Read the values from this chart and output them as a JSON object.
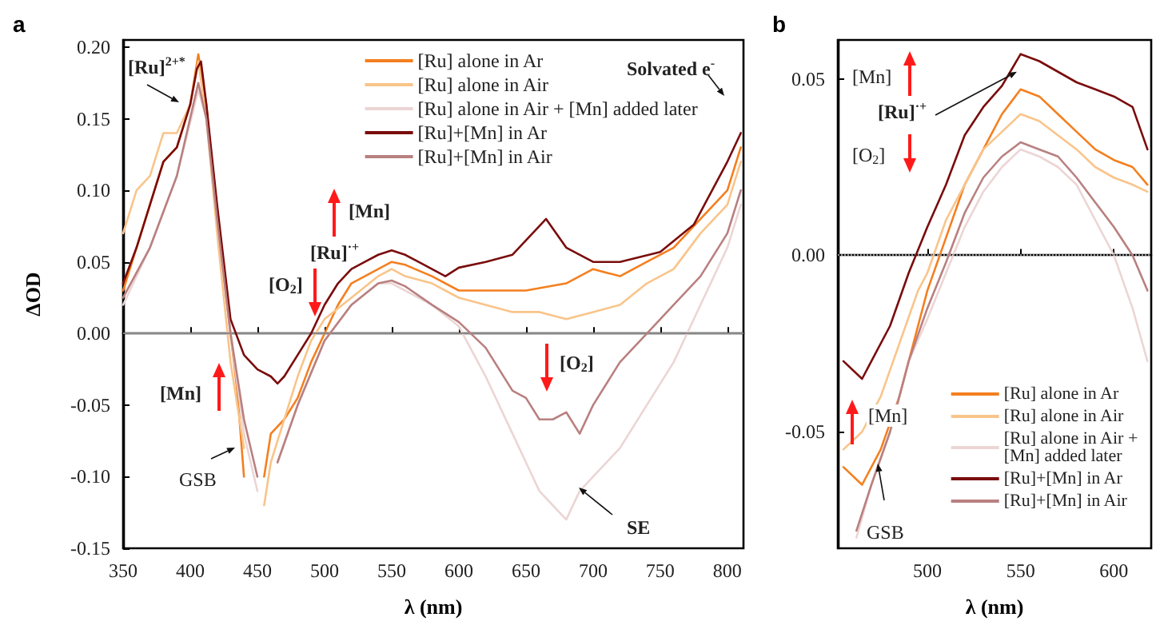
{
  "chart_data": [
    {
      "type": "line",
      "title": "a",
      "xlabel": "λ (nm)",
      "ylabel": "ΔOD",
      "xlim": [
        350,
        812
      ],
      "ylim": [
        -0.15,
        0.205
      ],
      "xticks": [
        350,
        400,
        450,
        500,
        550,
        600,
        650,
        700,
        750,
        800
      ],
      "yticks": [
        -0.15,
        {
          "value": -0.1,
          "label": "-0.10"
        },
        -0.05,
        {
          "value": 0,
          "label": "0.00"
        },
        0.05,
        {
          "value": 0.1,
          "label": "0.10"
        },
        0.15,
        {
          "value": 0.2,
          "label": "0.20"
        }
      ],
      "marker": "none",
      "legend": "top right",
      "ref_lines": [
        {
          "axis": "y",
          "value": 0,
          "color": "#888888"
        }
      ],
      "annotations": [
        "[Ru]$^{2+*}$",
        "Solvated e$^{-}$",
        "[Mn]",
        "[Ru]$^{·+}$",
        "[O$_{2}$]",
        "[Mn]",
        "[O$_{2}$]",
        "GSB",
        "SE"
      ],
      "series": [
        {
          "name": "[Ru] alone in Ar",
          "color": "#f47f1f",
          "x": [
            350,
            360,
            370,
            380,
            390,
            400,
            406,
            412,
            420,
            430,
            435,
            440,
            444,
            447,
            449,
            451,
            453,
            455,
            460,
            470,
            480,
            490,
            500,
            510,
            520,
            540,
            550,
            560,
            580,
            600,
            620,
            650,
            680,
            700,
            720,
            740,
            760,
            780,
            800,
            810
          ],
          "values": [
            0.03,
            0.06,
            0.09,
            0.12,
            0.13,
            0.16,
            0.195,
            0.16,
            0.08,
            0.0,
            -0.04,
            -0.1,
            null,
            null,
            null,
            null,
            null,
            -0.1,
            -0.07,
            -0.06,
            -0.045,
            -0.02,
            0.0,
            0.02,
            0.035,
            0.045,
            0.05,
            0.048,
            0.04,
            0.03,
            0.03,
            0.03,
            0.035,
            0.045,
            0.04,
            0.05,
            0.06,
            0.08,
            0.1,
            0.13
          ]
        },
        {
          "name": "[Ru] alone in Air",
          "color": "#f9c48a",
          "x": [
            350,
            360,
            370,
            380,
            390,
            400,
            406,
            412,
            420,
            430,
            440,
            448,
            455,
            460,
            470,
            480,
            490,
            500,
            520,
            540,
            550,
            560,
            580,
            600,
            620,
            640,
            660,
            680,
            700,
            720,
            740,
            760,
            780,
            800,
            810
          ],
          "values": [
            0.07,
            0.1,
            0.11,
            0.14,
            0.14,
            0.16,
            0.19,
            0.15,
            0.07,
            -0.02,
            -0.08,
            null,
            -0.12,
            -0.09,
            -0.06,
            -0.03,
            -0.005,
            0.01,
            0.025,
            0.04,
            0.045,
            0.04,
            0.035,
            0.025,
            0.02,
            0.015,
            0.015,
            0.01,
            0.015,
            0.02,
            0.035,
            0.045,
            0.07,
            0.09,
            0.12
          ]
        },
        {
          "name": "[Ru] alone in Air + [Mn] added later",
          "color": "#ecd5d5",
          "x": [
            350,
            370,
            390,
            406,
            412,
            420,
            430,
            440,
            450,
            458,
            465,
            480,
            500,
            520,
            540,
            550,
            560,
            580,
            600,
            620,
            640,
            650,
            660,
            670,
            680,
            690,
            700,
            720,
            740,
            760,
            780,
            800,
            810
          ],
          "values": [
            0.02,
            0.06,
            0.11,
            0.17,
            0.15,
            0.08,
            0.0,
            -0.07,
            -0.11,
            null,
            -0.09,
            -0.05,
            -0.005,
            0.02,
            0.035,
            0.035,
            0.03,
            0.02,
            0.005,
            -0.03,
            -0.07,
            -0.09,
            -0.11,
            -0.12,
            -0.13,
            -0.11,
            -0.1,
            -0.08,
            -0.05,
            -0.02,
            0.02,
            0.06,
            0.09
          ]
        },
        {
          "name": "[Ru]+[Mn] in Ar",
          "color": "#7a0c0c",
          "x": [
            350,
            360,
            370,
            380,
            390,
            400,
            405,
            408,
            412,
            420,
            425,
            430,
            440,
            450,
            460,
            465,
            470,
            480,
            490,
            500,
            510,
            520,
            530,
            540,
            550,
            560,
            570,
            580,
            590,
            600,
            620,
            640,
            665,
            680,
            700,
            720,
            750,
            775,
            800,
            810
          ],
          "values": [
            0.035,
            0.06,
            0.09,
            0.12,
            0.13,
            0.16,
            0.185,
            0.19,
            0.16,
            0.09,
            0.05,
            0.01,
            -0.015,
            -0.025,
            -0.03,
            -0.035,
            -0.03,
            -0.015,
            0.0,
            0.02,
            0.035,
            0.045,
            0.05,
            0.055,
            0.058,
            0.055,
            0.05,
            0.045,
            0.04,
            0.046,
            0.05,
            0.055,
            0.08,
            0.06,
            0.05,
            0.05,
            0.057,
            0.076,
            0.12,
            0.14
          ]
        },
        {
          "name": "[Ru]+[Mn] in Air",
          "color": "#b98080",
          "x": [
            350,
            370,
            390,
            406,
            412,
            420,
            430,
            440,
            450,
            458,
            465,
            480,
            500,
            520,
            540,
            550,
            560,
            580,
            600,
            620,
            640,
            650,
            660,
            670,
            680,
            690,
            700,
            720,
            740,
            760,
            780,
            800,
            810
          ],
          "values": [
            0.025,
            0.06,
            0.11,
            0.175,
            0.15,
            0.08,
            0.0,
            -0.06,
            -0.1,
            null,
            -0.09,
            -0.05,
            -0.005,
            0.02,
            0.035,
            0.037,
            0.033,
            0.02,
            0.008,
            -0.01,
            -0.04,
            -0.045,
            -0.06,
            -0.06,
            -0.055,
            -0.07,
            -0.05,
            -0.02,
            0.0,
            0.02,
            0.04,
            0.07,
            0.1
          ]
        }
      ]
    },
    {
      "type": "line",
      "title": "b",
      "xlabel": "λ (nm)",
      "xlim": [
        452,
        620
      ],
      "ylim": [
        -0.083,
        0.061
      ],
      "xticks": [
        500,
        550,
        600
      ],
      "yticks": [
        -0.05,
        {
          "value": 0,
          "label": "0.00"
        },
        0.05
      ],
      "marker": "none",
      "legend": "bottom right",
      "ref_lines": [
        {
          "axis": "y",
          "value": 0,
          "color": "#888888",
          "line_style": "dotted"
        }
      ],
      "annotations": [
        "[Mn]",
        {
          "text": "[Ru]$^{·+}$",
          "x": 548,
          "y": 0.052
        },
        "[O$_{2}$]",
        "[Mn]",
        "GSB"
      ],
      "series": [
        {
          "name": "[Ru] alone in Ar",
          "color": "#f47f1f",
          "x": [
            455,
            465,
            475,
            485,
            495,
            500,
            510,
            520,
            530,
            540,
            550,
            560,
            570,
            580,
            590,
            600,
            610,
            618
          ],
          "values": [
            -0.06,
            -0.065,
            -0.055,
            -0.04,
            -0.02,
            -0.01,
            0.005,
            0.02,
            0.03,
            0.04,
            0.047,
            0.045,
            0.04,
            0.035,
            0.03,
            0.027,
            0.025,
            0.02
          ]
        },
        {
          "name": "[Ru] alone in Air",
          "color": "#f9c48a",
          "x": [
            455,
            465,
            475,
            485,
            495,
            500,
            510,
            520,
            530,
            540,
            550,
            560,
            570,
            580,
            590,
            600,
            610,
            618
          ],
          "values": [
            -0.055,
            -0.05,
            -0.04,
            -0.025,
            -0.01,
            -0.005,
            0.01,
            0.02,
            0.03,
            0.035,
            0.04,
            0.038,
            0.034,
            0.03,
            0.025,
            0.022,
            0.02,
            0.018
          ]
        },
        {
          "name": "[Ru] alone in Air + [Mn] added later",
          "color": "#ecd5d5",
          "x": [
            462,
            470,
            480,
            490,
            500,
            510,
            520,
            530,
            540,
            550,
            560,
            570,
            580,
            590,
            600,
            610,
            618
          ],
          "values": [
            -0.08,
            -0.065,
            -0.05,
            -0.03,
            -0.018,
            -0.005,
            0.008,
            0.018,
            0.025,
            0.03,
            0.028,
            0.025,
            0.02,
            0.01,
            0.0,
            -0.015,
            -0.03
          ]
        },
        {
          "name": "[Ru]+[Mn] in Ar",
          "color": "#7a0c0c",
          "x": [
            455,
            465,
            470,
            480,
            490,
            500,
            510,
            520,
            530,
            540,
            550,
            560,
            570,
            580,
            590,
            600,
            610,
            618
          ],
          "values": [
            -0.03,
            -0.035,
            -0.03,
            -0.02,
            -0.005,
            0.008,
            0.02,
            0.034,
            0.042,
            0.048,
            0.057,
            0.055,
            0.052,
            0.049,
            0.047,
            0.045,
            0.042,
            0.03
          ]
        },
        {
          "name": "[Ru]+[Mn] in Air",
          "color": "#b98080",
          "x": [
            462,
            470,
            480,
            490,
            500,
            510,
            520,
            530,
            540,
            550,
            560,
            570,
            580,
            590,
            600,
            610,
            618
          ],
          "values": [
            -0.078,
            -0.065,
            -0.05,
            -0.03,
            -0.015,
            -0.002,
            0.012,
            0.022,
            0.028,
            0.032,
            0.03,
            0.028,
            0.022,
            0.015,
            0.008,
            0.0,
            -0.01
          ]
        }
      ]
    }
  ]
}
